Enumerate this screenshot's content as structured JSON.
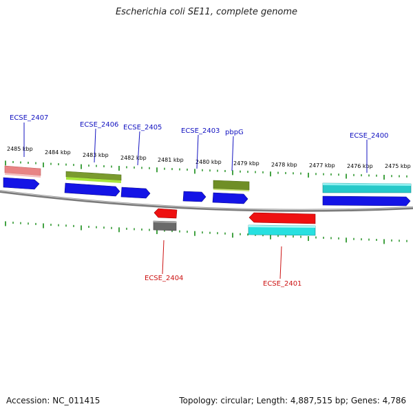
{
  "title": "Escherichia coli SE11, complete genome",
  "footer": {
    "accession": "Accession: NC_011415",
    "topology": "Topology: circular; Length: 4,887,515 bp; Genes: 4,786"
  },
  "colors": {
    "backbone": "#8c8c8c",
    "tick": "#138a13",
    "label_forward": "#1010c0",
    "label_reverse": "#cc1111"
  },
  "tick_labels": [
    "2485 kbp",
    "2484 kbp",
    "2483 kbp",
    "2482 kbp",
    "2481 kbp",
    "2480 kbp",
    "2479 kbp",
    "2478 kbp",
    "2477 kbp",
    "2476 kbp",
    "2475 kbp"
  ],
  "gene_labels": [
    {
      "id": "ecse-2407",
      "text": "ECSE_2407",
      "strand": "forward"
    },
    {
      "id": "ecse-2406",
      "text": "ECSE_2406",
      "strand": "forward"
    },
    {
      "id": "ecse-2405",
      "text": "ECSE_2405",
      "strand": "forward"
    },
    {
      "id": "ecse-2403",
      "text": "ECSE_2403",
      "strand": "forward"
    },
    {
      "id": "pbpg",
      "text": "pbpG",
      "strand": "forward"
    },
    {
      "id": "ecse-2400",
      "text": "ECSE_2400",
      "strand": "forward"
    },
    {
      "id": "ecse-2404",
      "text": "ECSE_2404",
      "strand": "reverse"
    },
    {
      "id": "ecse-2401",
      "text": "ECSE_2401",
      "strand": "reverse"
    }
  ],
  "features": [
    {
      "id": "cds-2407",
      "type": "CDS",
      "color": "#1414e6"
    },
    {
      "id": "gene-2407",
      "type": "pseudo-gene",
      "color": "#e88484"
    },
    {
      "id": "cds-2406",
      "type": "CDS",
      "color": "#1414e6"
    },
    {
      "id": "gene-2406",
      "type": "gene",
      "color": "#a8e63c"
    },
    {
      "id": "cds-2405",
      "type": "CDS",
      "color": "#1414e6"
    },
    {
      "id": "cds-2403",
      "type": "CDS",
      "color": "#1414e6"
    },
    {
      "id": "cds-pbpg",
      "type": "CDS",
      "color": "#1414e6"
    },
    {
      "id": "gene-pbpg",
      "type": "gene",
      "color": "#7a9a2e"
    },
    {
      "id": "cds-2400",
      "type": "CDS",
      "color": "#1414e6"
    },
    {
      "id": "gene-2400",
      "type": "rRNA",
      "color": "#27c9c9"
    },
    {
      "id": "cds-2404",
      "type": "CDS",
      "color": "#ee1111"
    },
    {
      "id": "gene-2404",
      "type": "misc",
      "color": "#707070"
    },
    {
      "id": "cds-2401",
      "type": "CDS",
      "color": "#ee1111"
    },
    {
      "id": "gene-2401",
      "type": "rRNA",
      "color": "#27e0e0"
    }
  ]
}
